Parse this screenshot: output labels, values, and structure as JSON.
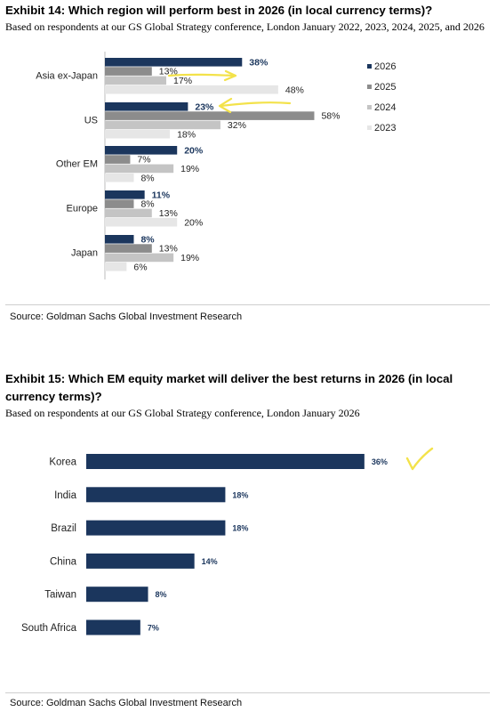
{
  "exhibit14": {
    "title": "Exhibit 14: Which region will perform best in 2026 (in local currency terms)?",
    "subtitle": "Based on respondents at our GS Global Strategy conference, London January 2022, 2023, 2024, 2025, and 2026",
    "source": "Source: Goldman Sachs Global Investment Research"
  },
  "exhibit15": {
    "title_line1": "Exhibit 15: Which EM equity market will deliver the best returns in 2026 (in local",
    "title_line2": "currency terms)?",
    "subtitle": "Based on respondents at our GS Global Strategy conference, London January 2026",
    "source": "Source: Goldman Sachs Global Investment Research"
  },
  "colors": {
    "s2026": "#1b365d",
    "s2025": "#8c8c8c",
    "s2024": "#c4c4c4",
    "s2023": "#e6e6e6",
    "highlight": "#f3e24a"
  },
  "annotations": [
    "yellow-arrow-asia-ex-japan",
    "yellow-arrow-us",
    "yellow-checkmark-korea"
  ],
  "chart_data": [
    {
      "type": "bar",
      "orientation": "horizontal",
      "categories": [
        "Asia ex-Japan",
        "US",
        "Other EM",
        "Europe",
        "Japan"
      ],
      "series": [
        {
          "name": "2026",
          "values": [
            38,
            23,
            20,
            11,
            8
          ],
          "labels": [
            "38%",
            "23%",
            "20%",
            "11%",
            "8%"
          ]
        },
        {
          "name": "2025",
          "values": [
            13,
            58,
            7,
            8,
            13
          ],
          "labels": [
            "13%",
            "58%",
            "7%",
            "8%",
            "13%"
          ]
        },
        {
          "name": "2024",
          "values": [
            17,
            32,
            19,
            13,
            19
          ],
          "labels": [
            "17%",
            "32%",
            "19%",
            "13%",
            "19%"
          ]
        },
        {
          "name": "2023",
          "values": [
            48,
            18,
            8,
            20,
            6
          ],
          "labels": [
            "48%",
            "18%",
            "8%",
            "20%",
            "6%"
          ]
        }
      ],
      "legend_position": "right",
      "xlim": [
        0,
        60
      ]
    },
    {
      "type": "bar",
      "orientation": "horizontal",
      "categories": [
        "Korea",
        "India",
        "Brazil",
        "China",
        "Taiwan",
        "South Africa"
      ],
      "values": [
        36,
        18,
        18,
        14,
        8,
        7
      ],
      "labels": [
        "36%",
        "18%",
        "18%",
        "14%",
        "8%",
        "7%"
      ],
      "xlim": [
        0,
        36
      ]
    }
  ]
}
